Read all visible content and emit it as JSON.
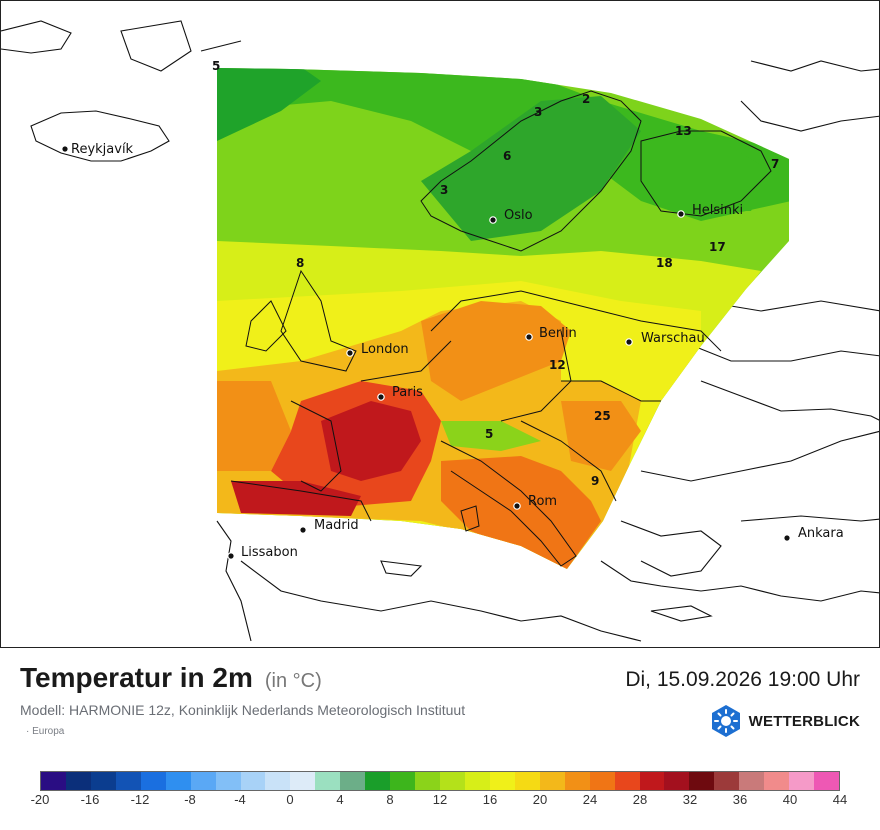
{
  "map": {
    "cities": [
      {
        "name": "Reykjavík"
      },
      {
        "name": "Oslo"
      },
      {
        "name": "Helsinki"
      },
      {
        "name": "Berlin"
      },
      {
        "name": "Warschau"
      },
      {
        "name": "London"
      },
      {
        "name": "Paris"
      },
      {
        "name": "Rom"
      },
      {
        "name": "Madrid"
      },
      {
        "name": "Lissabon"
      },
      {
        "name": "Ankara"
      }
    ],
    "value_labels": [
      "5",
      "2",
      "3",
      "13",
      "6",
      "7",
      "3",
      "17",
      "18",
      "8",
      "12",
      "25",
      "5",
      "9"
    ]
  },
  "header": {
    "title": "Temperatur in 2m",
    "unit": "(in °C)",
    "datetime": "Di, 15.09.2026 19:00 Uhr",
    "model": "Modell: HARMONIE 12z, Koninklijk Nederlands Meteorologisch Instituut",
    "region": "· Europa"
  },
  "brand": {
    "name": "WETTERBLICK",
    "icon": "sun-snowflake-icon",
    "color": "#1d6fd1"
  },
  "legend": {
    "ticks": [
      "-20",
      "-16",
      "-12",
      "-8",
      "-4",
      "0",
      "4",
      "8",
      "12",
      "16",
      "20",
      "24",
      "28",
      "32",
      "36",
      "40",
      "44"
    ],
    "colors": [
      "#2a0d83",
      "#0b2f7a",
      "#0b3d8f",
      "#1253b5",
      "#1a6fe0",
      "#2f8ff0",
      "#5aa8f5",
      "#82bff7",
      "#a8d2f7",
      "#c9e2f8",
      "#ddebf8",
      "#9be0c0",
      "#6cae88",
      "#1a9e2a",
      "#3db51c",
      "#8bd31a",
      "#b4e11a",
      "#d7ee18",
      "#f0f019",
      "#f5da14",
      "#f3b81a",
      "#f29016",
      "#f07515",
      "#e8471c",
      "#c0181c",
      "#a3101e",
      "#6e0a0f",
      "#9c3a3a",
      "#c97a7a",
      "#f18b8b",
      "#f59ac8",
      "#ee58b4"
    ]
  }
}
